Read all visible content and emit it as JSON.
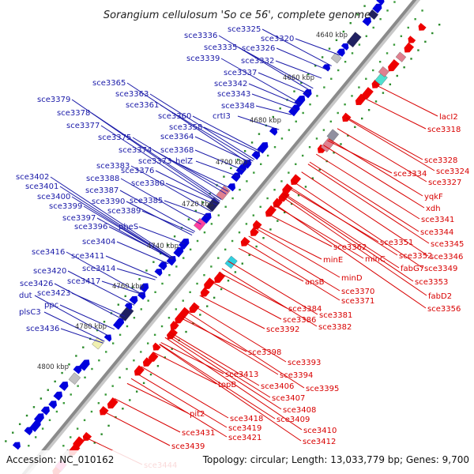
{
  "title": "Sorangium cellulosum 'So ce 56', complete genome",
  "footer": {
    "accession": "Accession: NC_010162",
    "summary": "Topology: circular; Length: 13,033,779 bp; Genes: 9,700"
  },
  "kbp_ticks": [
    "4640 kbp",
    "4660 kbp",
    "4680 kbp",
    "4700 kbp",
    "4720 kbp",
    "4740 kbp",
    "4760 kbp",
    "4780 kbp",
    "4800 kbp"
  ],
  "labels_left": [
    "sce3325",
    "sce3320",
    "sce3336",
    "sce3335",
    "sce3326",
    "sce3339",
    "sce3332",
    "sce3337",
    "sce3342",
    "sce3343",
    "sce3348",
    "crtI3",
    "sce3365",
    "sce3363",
    "sce3361",
    "sce3360",
    "sce3358",
    "sce3379",
    "sce3378",
    "sce3377",
    "sce3375",
    "sce3364",
    "sce3374",
    "sce3368",
    "sce3373",
    "helZ",
    "sce3383",
    "sce3376",
    "sce3380",
    "sce3388",
    "sce3402",
    "sce3401",
    "sce3387",
    "sce3400",
    "sce3390",
    "sce3385",
    "sce3399",
    "sce3389",
    "sce3397",
    "sce3396",
    "pheS",
    "sce3404",
    "sce3416",
    "sce3411",
    "sce3414",
    "sce3420",
    "sce3417",
    "sce3426",
    "sce3423",
    "dut",
    "ppc",
    "plsC3",
    "sce3436"
  ],
  "labels_right": [
    "lacI2",
    "sce3318",
    "sce3328",
    "sce3324",
    "sce3334",
    "sce3327",
    "yqkF",
    "xdh",
    "sce3341",
    "sce3344",
    "sce3351",
    "sce3345",
    "sce3362",
    "sce3352",
    "sce3346",
    "minE",
    "minC",
    "fabG7",
    "sce3349",
    "minD",
    "sce3353",
    "ansB",
    "sce3370",
    "sce3371",
    "fabD2",
    "sce3356",
    "sce3384",
    "sce3381",
    "sce3386",
    "sce3382",
    "sce3392",
    "sce3398",
    "sce3393",
    "sce3394",
    "sce3413",
    "topB",
    "sce3406",
    "sce3395",
    "sce3407",
    "sce3408",
    "pit2",
    "sce3409",
    "sce3418",
    "sce3419",
    "sce3410",
    "sce3431",
    "sce3421",
    "sce3412",
    "sce3439",
    "sce3444"
  ],
  "colors": {
    "forward_strand": "#0000dd",
    "reverse_strand": "#ee0000",
    "backbone": "#8a8a8a",
    "dot_marks": "#2a8a2a",
    "label_left": "#1a1aa8",
    "label_right": "#d80000"
  }
}
